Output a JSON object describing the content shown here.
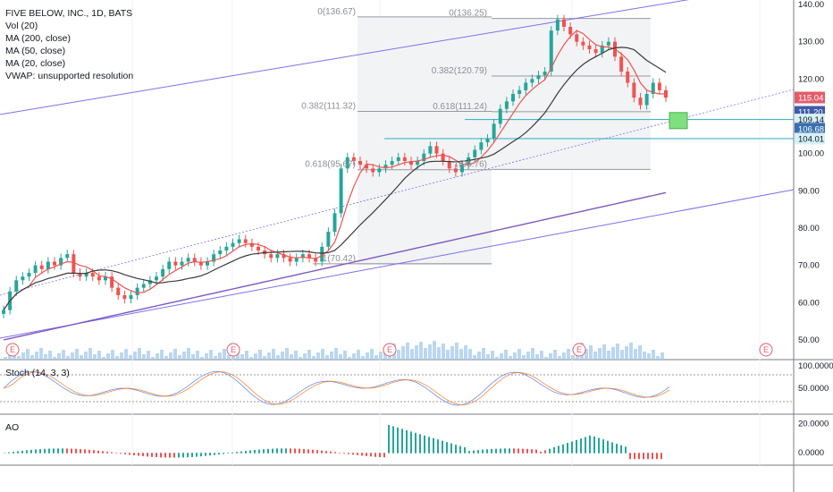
{
  "legend": {
    "title": "FIVE BELOW, INC., 1D, BATS",
    "lines": [
      "Vol (20)",
      "MA (200, close)",
      "MA (50, close)",
      "MA (20, close)",
      "VWAP: unsupported resolution"
    ]
  },
  "stoch_label": "Stoch (14, 3, 3)",
  "ao_label": "AO",
  "chart_data": {
    "type": "line",
    "title": "FIVE BELOW, INC., 1D, BATS",
    "price_axis": {
      "ticks": [
        "140.00",
        "130.00",
        "120.00",
        "110.00",
        "100.00",
        "90.00",
        "80.00",
        "70.00",
        "60.00",
        "50.00"
      ],
      "range": [
        45,
        142
      ]
    },
    "stoch_axis": {
      "ticks": [
        "100.0000",
        "50.0000"
      ],
      "range": [
        0,
        110
      ]
    },
    "ao_axis": {
      "ticks": [
        "20.0000",
        "0.0000"
      ],
      "range": [
        -6,
        24
      ]
    },
    "price_badges": [
      {
        "value": "115.04",
        "price": 115.04,
        "bg": "#e35d6a",
        "fg": "#ffffff"
      },
      {
        "value": "111.20",
        "price": 111.2,
        "bg": "#3f5ba9",
        "fg": "#ffffff"
      },
      {
        "value": "109.14",
        "price": 109.14,
        "bg": "#d6f1f5",
        "fg": "#131722"
      },
      {
        "value": "106.68",
        "price": 106.68,
        "bg": "#3a6fb0",
        "fg": "#ffffff"
      },
      {
        "value": "104.01",
        "price": 104.01,
        "bg": "#d6f1f5",
        "fg": "#131722"
      }
    ],
    "fib_labels": [
      {
        "text": "0(136.67)",
        "price": 136.67,
        "x": 398
      },
      {
        "text": "0.382(111.32)",
        "price": 111.32,
        "x": 398
      },
      {
        "text": "0.618(95.67)",
        "price": 95.67,
        "x": 398
      },
      {
        "text": "1(70.42)",
        "price": 70.42,
        "x": 398
      },
      {
        "text": "0(136.25)",
        "price": 136.25,
        "x": 545
      },
      {
        "text": "0.382(120.79)",
        "price": 120.79,
        "x": 545
      },
      {
        "text": "0.618(111.24)",
        "price": 111.24,
        "x": 545
      },
      {
        "text": "1(95.76)",
        "price": 95.76,
        "x": 545
      }
    ],
    "earnings_marker": "E",
    "close": [
      58,
      63,
      66,
      67,
      68,
      70,
      69,
      71,
      70,
      72,
      73,
      68,
      67,
      68,
      67,
      66,
      67,
      64,
      62,
      61,
      62,
      64,
      65,
      66,
      67,
      69,
      71,
      70,
      71,
      72,
      71,
      70,
      71,
      73,
      74,
      75,
      76,
      77,
      76,
      75,
      74,
      73,
      72,
      73,
      72,
      71,
      72,
      73,
      72,
      71,
      75,
      79,
      84,
      96,
      99,
      98,
      97,
      96,
      95,
      96,
      97,
      98,
      99,
      98,
      97,
      98,
      100,
      102,
      100,
      98,
      96,
      95,
      97,
      99,
      101,
      103,
      104,
      108,
      112,
      114,
      116,
      117,
      119,
      120,
      121,
      122,
      133,
      136,
      134,
      132,
      130,
      129,
      128,
      127,
      129,
      130,
      126,
      122,
      119,
      115,
      113,
      116,
      119,
      117,
      115
    ]
  },
  "colors": {
    "up": "#26a69a",
    "down": "#ef5350",
    "ma20": "#ef5350",
    "ma50": "#3b3b3b",
    "ma200": "#7e57c2",
    "channel": "#7b6ff0",
    "fib_bg": "#f2f3f5",
    "cyan": "#3fb6c9",
    "volume": "#a9cdee"
  }
}
